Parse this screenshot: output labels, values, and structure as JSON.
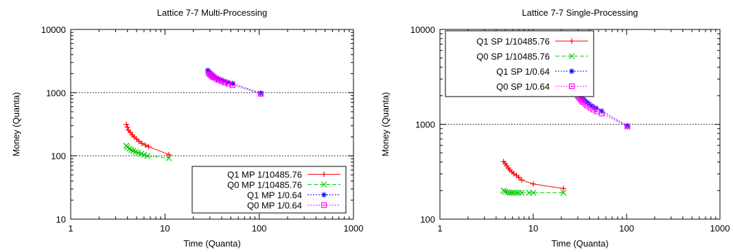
{
  "chart_data": [
    {
      "type": "scatter",
      "title": "Lattice 7-7 Multi-Processing",
      "xlabel": "Time (Quanta)",
      "ylabel": "Money (Quanta)",
      "xscale": "log",
      "yscale": "log",
      "xlim": [
        1,
        1000
      ],
      "ylim": [
        10,
        10000
      ],
      "xticks": [
        1,
        10,
        100,
        1000
      ],
      "xtick_labels": [
        "1",
        "10",
        "100",
        "1000"
      ],
      "yticks": [
        10,
        100,
        1000,
        10000
      ],
      "ytick_labels": [
        "10",
        "100",
        "1000",
        "10000"
      ],
      "ref_lines": [
        100,
        1000
      ],
      "legend_position": "bottom-right",
      "series": [
        {
          "name": "Q1 MP 1/10485.76",
          "color": "#ff0000",
          "marker": "plus",
          "line": "solid",
          "x": [
            3.9,
            4.0,
            4.1,
            4.3,
            4.5,
            4.7,
            5.0,
            5.3,
            5.7,
            6.2,
            6.7,
            11.0
          ],
          "y": [
            315,
            285,
            255,
            235,
            215,
            200,
            185,
            170,
            158,
            148,
            140,
            105
          ]
        },
        {
          "name": "Q0 MP 1/10485.76",
          "color": "#00cc00",
          "marker": "x",
          "line": "dashed",
          "x": [
            3.9,
            4.0,
            4.2,
            4.4,
            4.6,
            4.9,
            5.2,
            5.6,
            6.0,
            6.5,
            11.0
          ],
          "y": [
            145,
            137,
            130,
            125,
            120,
            116,
            112,
            108,
            104,
            100,
            92
          ]
        },
        {
          "name": "Q1 MP 1/0.64",
          "color": "#0000ff",
          "marker": "star",
          "line": "dotted",
          "x": [
            28.5,
            29,
            30,
            31,
            32,
            33.5,
            35,
            37,
            39,
            42,
            46,
            52,
            104
          ],
          "y": [
            2250,
            2150,
            2050,
            1950,
            1870,
            1800,
            1720,
            1650,
            1600,
            1520,
            1460,
            1400,
            980
          ]
        },
        {
          "name": "Q0 MP 1/0.64",
          "color": "#ff00ff",
          "marker": "square",
          "line": "dotted",
          "x": [
            29,
            30,
            31,
            32,
            33,
            35,
            37,
            40,
            43,
            47,
            52,
            104
          ],
          "y": [
            2050,
            1950,
            1870,
            1800,
            1740,
            1660,
            1590,
            1520,
            1450,
            1390,
            1320,
            960
          ]
        }
      ]
    },
    {
      "type": "scatter",
      "title": "Lattice 7-7 Single-Processing",
      "xlabel": "Time (Quanta)",
      "ylabel": "Money (Quanta)",
      "xscale": "log",
      "yscale": "log",
      "xlim": [
        1,
        1000
      ],
      "ylim": [
        100,
        10000
      ],
      "xticks": [
        1,
        10,
        100,
        1000
      ],
      "xtick_labels": [
        "1",
        "10",
        "100",
        "1000"
      ],
      "yticks": [
        100,
        1000,
        10000
      ],
      "ytick_labels": [
        "100",
        "1000",
        "10000"
      ],
      "ref_lines": [
        1000
      ],
      "legend_position": "top-left",
      "series": [
        {
          "name": "Q1 SP 1/10485.76",
          "color": "#ff0000",
          "marker": "plus",
          "line": "solid",
          "x": [
            4.8,
            5.0,
            5.2,
            5.4,
            5.6,
            5.9,
            6.2,
            6.6,
            7.0,
            7.5,
            10.0,
            21.0
          ],
          "y": [
            405,
            385,
            365,
            345,
            330,
            315,
            300,
            290,
            275,
            258,
            235,
            210
          ]
        },
        {
          "name": "Q0 SP 1/10485.76",
          "color": "#00cc00",
          "marker": "x",
          "line": "dashed",
          "x": [
            4.8,
            5.0,
            5.3,
            5.6,
            5.9,
            6.2,
            6.6,
            7.0,
            7.5,
            9.0,
            10.0,
            21.0
          ],
          "y": [
            200,
            195,
            192,
            190,
            190,
            190,
            190,
            190,
            190,
            190,
            190,
            190
          ]
        },
        {
          "name": "Q1 SP 1/0.64",
          "color": "#0000ff",
          "marker": "star",
          "line": "dotted",
          "x": [
            29.5,
            30,
            31,
            32,
            33,
            34.5,
            36,
            38,
            40,
            43,
            47,
            54,
            102
          ],
          "y": [
            2250,
            2150,
            2050,
            1980,
            1900,
            1830,
            1760,
            1690,
            1620,
            1550,
            1480,
            1380,
            960
          ]
        },
        {
          "name": "Q0 SP 1/0.64",
          "color": "#ff00ff",
          "marker": "square",
          "line": "dotted",
          "x": [
            30,
            31,
            32,
            33,
            34,
            36,
            38,
            41,
            44,
            48,
            54,
            102
          ],
          "y": [
            2000,
            1920,
            1850,
            1780,
            1720,
            1640,
            1570,
            1500,
            1430,
            1370,
            1300,
            950
          ]
        }
      ]
    }
  ]
}
